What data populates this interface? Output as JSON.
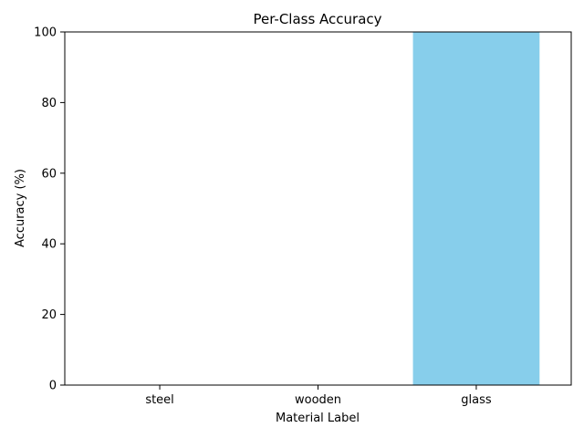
{
  "chart_data": {
    "type": "bar",
    "title": "Per-Class Accuracy",
    "xlabel": "Material Label",
    "ylabel": "Accuracy (%)",
    "categories": [
      "steel",
      "wooden",
      "glass"
    ],
    "values": [
      0,
      0,
      100
    ],
    "ylim": [
      0,
      100
    ],
    "yticks": [
      0,
      20,
      40,
      60,
      80,
      100
    ],
    "bar_color": "#87CEEB",
    "grid": false,
    "legend": false
  }
}
